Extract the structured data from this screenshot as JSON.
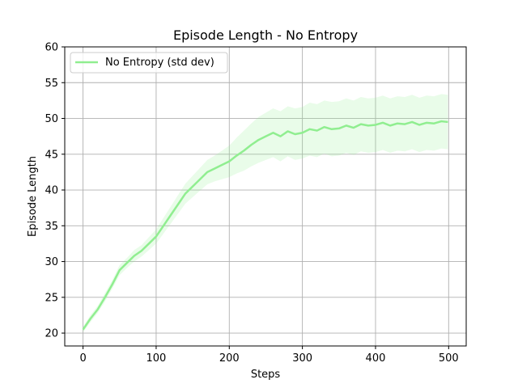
{
  "chart_data": {
    "type": "line",
    "title": "Episode Length - No Entropy",
    "xlabel": "Steps",
    "ylabel": "Episode Length",
    "xlim": [
      -25,
      524
    ],
    "ylim": [
      18.2,
      60
    ],
    "xticks": [
      0,
      100,
      200,
      300,
      400,
      500
    ],
    "yticks": [
      20,
      25,
      30,
      35,
      40,
      45,
      50,
      55,
      60
    ],
    "grid": true,
    "legend_position": "top-left",
    "series": [
      {
        "name": "No Entropy (std dev)",
        "color": "#90ee90",
        "band": "std dev",
        "x": [
          0,
          10,
          20,
          30,
          40,
          50,
          60,
          70,
          80,
          90,
          100,
          110,
          120,
          130,
          140,
          150,
          160,
          170,
          180,
          190,
          200,
          210,
          220,
          230,
          240,
          250,
          260,
          270,
          280,
          290,
          300,
          310,
          320,
          330,
          340,
          350,
          360,
          370,
          380,
          390,
          400,
          410,
          420,
          430,
          440,
          450,
          460,
          470,
          480,
          490,
          499
        ],
        "y": [
          20.5,
          22.0,
          23.3,
          25.0,
          26.8,
          28.8,
          29.8,
          30.8,
          31.5,
          32.5,
          33.5,
          35.0,
          36.5,
          38.0,
          39.5,
          40.5,
          41.5,
          42.5,
          43.0,
          43.5,
          44.0,
          44.8,
          45.5,
          46.3,
          47.0,
          47.5,
          48.0,
          47.5,
          48.2,
          47.8,
          48.0,
          48.5,
          48.3,
          48.8,
          48.5,
          48.6,
          49.0,
          48.7,
          49.2,
          49.0,
          49.1,
          49.4,
          49.0,
          49.3,
          49.2,
          49.5,
          49.1,
          49.4,
          49.3,
          49.6,
          49.5
        ],
        "std": [
          0.4,
          0.5,
          0.5,
          0.6,
          0.6,
          0.7,
          0.7,
          0.8,
          0.8,
          0.9,
          1.0,
          1.1,
          1.2,
          1.3,
          1.4,
          1.5,
          1.6,
          1.7,
          1.8,
          2.0,
          2.2,
          2.5,
          2.8,
          3.0,
          3.2,
          3.3,
          3.4,
          3.5,
          3.5,
          3.6,
          3.6,
          3.7,
          3.7,
          3.7,
          3.8,
          3.8,
          3.8,
          3.8,
          3.8,
          3.8,
          3.8,
          3.8,
          3.8,
          3.8,
          3.8,
          3.8,
          3.8,
          3.8,
          3.8,
          3.8,
          3.8
        ]
      }
    ]
  }
}
